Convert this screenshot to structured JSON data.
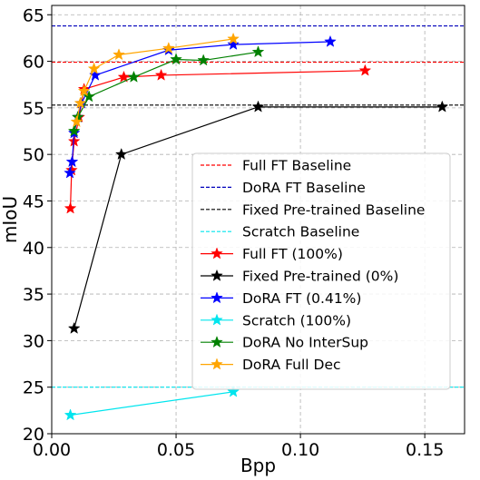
{
  "chart_data": {
    "type": "line",
    "xlabel": "Bpp",
    "ylabel": "mIoU",
    "xlim": [
      0.0,
      0.166
    ],
    "ylim": [
      20,
      66
    ],
    "xticks": [
      0.0,
      0.05,
      0.1,
      0.15
    ],
    "xtick_labels": [
      "0.00",
      "0.05",
      "0.10",
      "0.15"
    ],
    "yticks": [
      20,
      25,
      30,
      35,
      40,
      45,
      50,
      55,
      60,
      65
    ],
    "ytick_labels": [
      "20",
      "25",
      "30",
      "35",
      "40",
      "45",
      "50",
      "55",
      "60",
      "65"
    ],
    "grid": true,
    "legend_position": "lower-right",
    "baselines": [
      {
        "name": "Full FT Baseline",
        "y": 59.9,
        "color": "#ff0000"
      },
      {
        "name": "DoRA FT Baseline",
        "y": 63.8,
        "color": "#0000bb"
      },
      {
        "name": "Fixed Pre-trained Baseline",
        "y": 55.3,
        "color": "#000000"
      },
      {
        "name": "Scratch Baseline",
        "y": 25.0,
        "color": "#00e5ee"
      }
    ],
    "series": [
      {
        "name": "Full FT (100%)",
        "color": "#ff0000",
        "x": [
          0.0075,
          0.008,
          0.009,
          0.011,
          0.013,
          0.029,
          0.044,
          0.126
        ],
        "y": [
          44.2,
          48.3,
          51.4,
          54.0,
          57.0,
          58.3,
          58.5,
          59.0
        ]
      },
      {
        "name": "Fixed Pre-trained (0%)",
        "color": "#000000",
        "x": [
          0.009,
          0.028,
          0.083,
          0.157
        ],
        "y": [
          31.3,
          50.0,
          55.1,
          55.1
        ]
      },
      {
        "name": "DoRA FT (0.41%)",
        "color": "#0000ff",
        "x": [
          0.0073,
          0.0082,
          0.009,
          0.0105,
          0.012,
          0.0175,
          0.047,
          0.073,
          0.112
        ],
        "y": [
          48.0,
          49.2,
          52.3,
          54.0,
          55.5,
          58.5,
          61.2,
          61.8,
          62.1
        ]
      },
      {
        "name": "Scratch (100%)",
        "color": "#00e5ee",
        "x": [
          0.0075,
          0.073
        ],
        "y": [
          22.0,
          24.5
        ]
      },
      {
        "name": "DoRA No InterSup",
        "color": "#008000",
        "x": [
          0.009,
          0.0105,
          0.015,
          0.033,
          0.05,
          0.061,
          0.083
        ],
        "y": [
          52.5,
          54.0,
          56.2,
          58.3,
          60.2,
          60.1,
          61.0
        ]
      },
      {
        "name": "DoRA Full Dec",
        "color": "#ffa500",
        "x": [
          0.01,
          0.0115,
          0.013,
          0.017,
          0.027,
          0.047,
          0.073
        ],
        "y": [
          53.5,
          55.5,
          56.8,
          59.2,
          60.7,
          61.4,
          62.4
        ]
      }
    ]
  }
}
